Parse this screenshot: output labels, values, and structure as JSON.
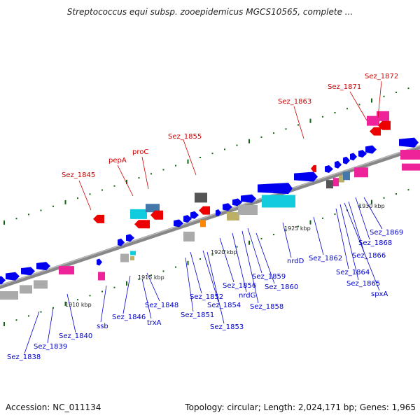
{
  "title": "Streptococcus equi subsp. zooepidemicus MGCS10565, complete ...",
  "footer": {
    "accession": "Accession: NC_011134",
    "summary": "Topology: circular; Length: 2,024,171 bp; Genes: 1,965"
  },
  "colors": {
    "forward_gene": "#0000ee",
    "reverse_gene_red": "#ee0000",
    "backbone": "#888888",
    "rna_gray": "#aaaaaa",
    "cyan": "#11ccdd",
    "magenta": "#ee2299",
    "steel_blue": "#4477aa",
    "khaki": "#bbb066",
    "dark_gray": "#555555",
    "orange": "#ff8800",
    "label_red": "#cc0000",
    "label_blue": "#0000cc",
    "tick_green": "#116611"
  },
  "ticks": [
    "1910 kbp",
    "1915 kbp",
    "1920 kbp",
    "1925 kbp",
    "1930 kbp"
  ],
  "red_labels": [
    "Sez_1845",
    "pepA",
    "proC",
    "Sez_1855",
    "Sez_1863",
    "Sez_1871",
    "Sez_1872"
  ],
  "blue_labels": [
    "Sez_1838",
    "Sez_1839",
    "Sez_1840",
    "ssb",
    "Sez_1846",
    "trxA",
    "Sez_1848",
    "Sez_1851",
    "Sez_1852",
    "Sez_1854",
    "Sez_1853",
    "Sez_1856",
    "nrdG",
    "Sez_1858",
    "Sez_1859",
    "Sez_1860",
    "nrdD",
    "Sez_1862",
    "Sez_1864",
    "Sez_1865",
    "spxA",
    "Sez_1866",
    "Sez_1868",
    "Sez_1869"
  ]
}
